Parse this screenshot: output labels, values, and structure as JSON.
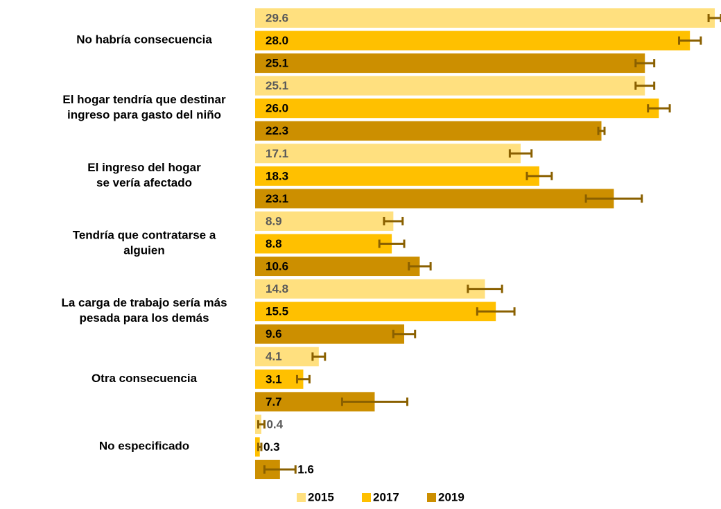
{
  "chart_data": {
    "type": "bar",
    "orientation": "horizontal",
    "categories": [
      "No habría consecuencia",
      "El hogar tendría que destinar\ningreso para gasto del niño",
      "El ingreso del hogar\nse vería afectado",
      "Tendría que contratarse a\nalguien",
      "La carga de trabajo sería más\npesada para los demás",
      "Otra consecuencia",
      "No especificado"
    ],
    "series": [
      {
        "name": "2015",
        "color": "#ffe07f",
        "label_color": "#595959",
        "values": [
          29.6,
          25.1,
          17.1,
          8.9,
          14.8,
          4.1,
          0.4
        ],
        "errors": [
          0.4,
          0.6,
          0.7,
          0.6,
          1.1,
          0.4,
          0.2
        ]
      },
      {
        "name": "2017",
        "color": "#ffc000",
        "label_color": "#000000",
        "values": [
          28.0,
          26.0,
          18.3,
          8.8,
          15.5,
          3.1,
          0.3
        ],
        "value_labels": [
          "28.0",
          "26.0",
          "18.3",
          "8.8",
          "15.5",
          "3.1",
          "0.3"
        ],
        "errors": [
          0.7,
          0.7,
          0.8,
          0.8,
          1.2,
          0.4,
          0.1
        ]
      },
      {
        "name": "2019",
        "color": "#cc8f00",
        "label_color": "#000000",
        "values": [
          25.1,
          22.3,
          23.1,
          10.6,
          9.6,
          7.7,
          1.6
        ],
        "errors": [
          0.6,
          0.2,
          1.8,
          0.7,
          0.7,
          2.1,
          1.0
        ]
      }
    ],
    "error_color": "#8a6000",
    "xlim": [
      0,
      30
    ],
    "legend": "bottom"
  }
}
